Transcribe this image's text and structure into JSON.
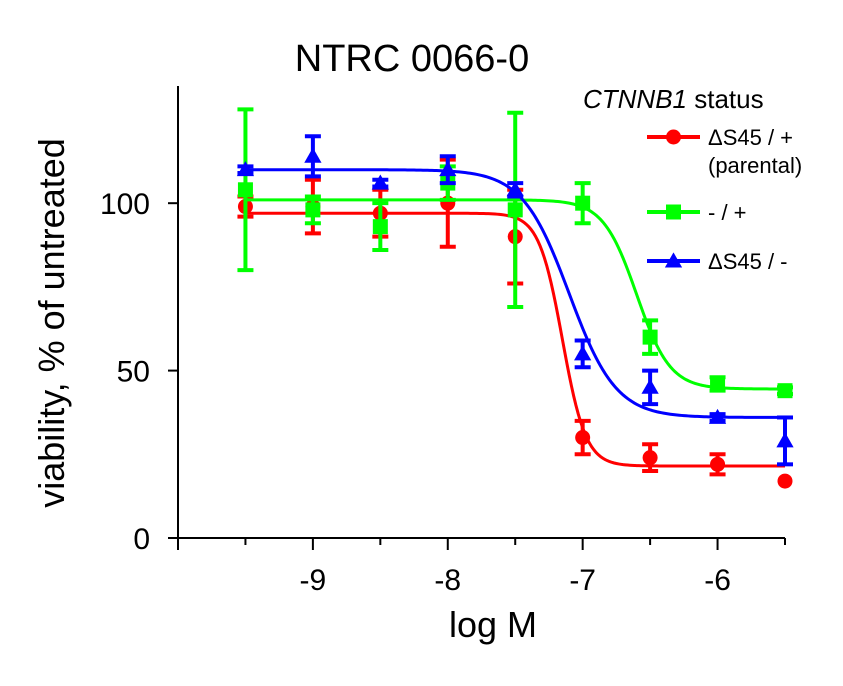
{
  "chart_data": {
    "type": "scatter",
    "title": "NTRC 0066-0",
    "xlabel": "log M",
    "ylabel": "viability, % of untreated",
    "xlim": [
      -10,
      -5.5
    ],
    "ylim": [
      0,
      135
    ],
    "xticks": [
      -9,
      -8,
      -7,
      -6
    ],
    "yticks": [
      0,
      50,
      100
    ],
    "grid": false,
    "legend_position": "top-right",
    "legend_title_italic": "CTNNB1",
    "legend_title_rest": " status",
    "series": [
      {
        "name": "ΔS45 / + (parental)",
        "name_lines": [
          "ΔS45 / +",
          "(parental)"
        ],
        "color": "#ff0000",
        "marker": "circle",
        "x": [
          -9.5,
          -9,
          -8.5,
          -8,
          -7.5,
          -7,
          -6.5,
          -6,
          -5.5
        ],
        "y": [
          99,
          99,
          97,
          100,
          90,
          30,
          24,
          22,
          17
        ],
        "error": [
          3,
          8,
          7,
          13,
          14,
          5,
          4,
          3,
          0
        ],
        "fit": {
          "top": 97,
          "bottom": 21.5,
          "logec50": -7.15,
          "hill": 5
        }
      },
      {
        "name": "- / +",
        "name_lines": [
          "- / +"
        ],
        "color": "#00ff00",
        "marker": "square",
        "x": [
          -9.5,
          -9,
          -8.5,
          -8,
          -7.5,
          -7,
          -6.5,
          -6,
          -5.5
        ],
        "y": [
          104,
          98,
          93,
          106,
          98,
          100,
          60,
          46,
          44
        ],
        "error": [
          24,
          4,
          7,
          5,
          29,
          6,
          5,
          2,
          1
        ],
        "fit": {
          "top": 101,
          "bottom": 44.5,
          "logec50": -6.6,
          "hill": 3.5
        }
      },
      {
        "name": "ΔS45 / -",
        "name_lines": [
          "ΔS45 / -"
        ],
        "color": "#0000ff",
        "marker": "triangle",
        "x": [
          -9.5,
          -9,
          -8.5,
          -8,
          -7.5,
          -7,
          -6.5,
          -6,
          -5.5
        ],
        "y": [
          110,
          114,
          106,
          110,
          104,
          55,
          45,
          36,
          29
        ],
        "error": [
          1,
          6,
          1,
          4,
          2,
          4,
          5,
          1,
          7
        ],
        "fit": {
          "top": 110,
          "bottom": 36,
          "logec50": -7.1,
          "hill": 2.5
        }
      }
    ]
  }
}
